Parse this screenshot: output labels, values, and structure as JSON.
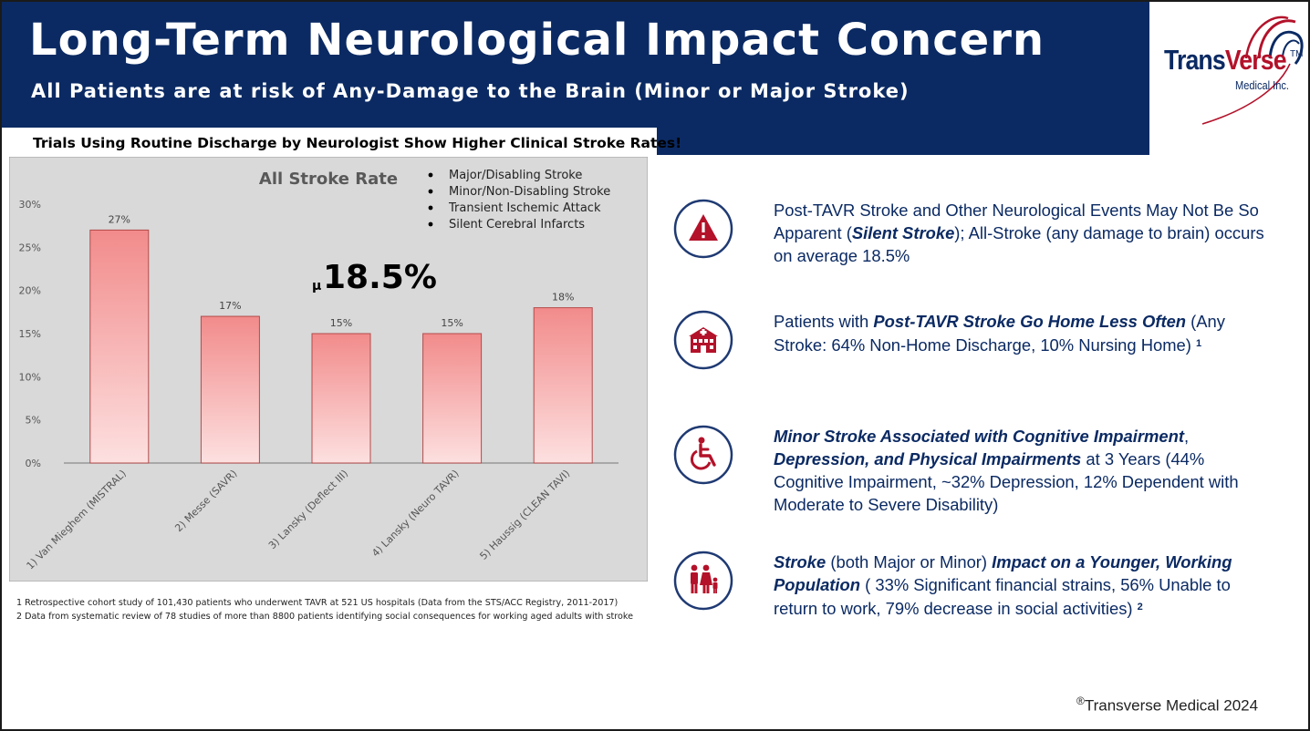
{
  "header": {
    "title": "Long-Term Neurological Impact Concern",
    "subtitle": "All Patients are at risk of Any-Damage to the Brain (Minor or Major Stroke)"
  },
  "logo": {
    "word_part1": "Trans",
    "word_part2": "Verse",
    "tm": "TM",
    "sub": "Medical Inc.",
    "colors": {
      "navy": "#0b2a63",
      "red": "#b3122a"
    }
  },
  "chart_heading": "Trials Using Routine Discharge by Neurologist Show Higher Clinical Stroke Rates!",
  "chart_data": {
    "type": "bar",
    "title": "All Stroke Rate",
    "categories": [
      "1) Van Mieghem (MISTRAL)",
      "2) Messe (SAVR)",
      "3) Lansky (Deflect III)",
      "4) Lansky (Neuro TAVR)",
      "5) Haussig (CLEAN TAVI)"
    ],
    "values": [
      27,
      17,
      15,
      15,
      18
    ],
    "data_labels": [
      "27%",
      "17%",
      "15%",
      "15%",
      "18%"
    ],
    "yticks": [
      "0%",
      "5%",
      "10%",
      "15%",
      "20%",
      "25%",
      "30%"
    ],
    "ylim": [
      0,
      30
    ],
    "grid": false,
    "legend_items": [
      "Major/Disabling Stroke",
      "Minor/Non-Disabling Stroke",
      "Transient Ischemic Attack",
      "Silent Cerebral Infarcts"
    ],
    "mean_symbol": "μ",
    "mean_value": "18.5%",
    "colors": {
      "bar_top": "#f28b8b",
      "bar_bottom": "#fde0e0",
      "bar_edge": "#b44a4a",
      "plot_bg": "#d9d9d9"
    }
  },
  "notes": [
    "1 Retrospective cohort study of 101,430 patients who underwent TAVR at 521 US hospitals (Data from the STS/ACC Registry, 2011-2017)",
    "2 Data from systematic review of 78 studies of more than 8800 patients identifying social consequences for working aged adults with stroke"
  ],
  "points": [
    {
      "icon": "warning-icon",
      "parts": [
        {
          "t": "Post-TAVR Stroke and Other Neurological Events May Not Be So Apparent ("
        },
        {
          "t": "Silent Stroke",
          "b": true
        },
        {
          "t": "); All-Stroke (any damage to brain) occurs on average 18.5%"
        }
      ]
    },
    {
      "icon": "hospital-icon",
      "parts": [
        {
          "t": "Patients with "
        },
        {
          "t": "Post-TAVR Stroke Go Home Less Often",
          "b": true
        },
        {
          "t": " (Any Stroke: 64% Non-Home Discharge, 10% Nursing Home) "
        },
        {
          "t": "1",
          "sup": true
        }
      ]
    },
    {
      "icon": "wheelchair-icon",
      "parts": [
        {
          "t": "Minor Stroke Associated with Cognitive Impairment",
          "b": true
        },
        {
          "t": ", "
        },
        {
          "t": "Depression, and Physical Impairments",
          "b": true
        },
        {
          "t": " at 3 Years (44% Cognitive Impairment, ~32% Depression, 12% Dependent with Moderate to Severe Disability)"
        }
      ]
    },
    {
      "icon": "family-icon",
      "parts": [
        {
          "t": "Stroke",
          "b": true
        },
        {
          "t": " (both Major or Minor) "
        },
        {
          "t": "Impact on a Younger, Working Population",
          "b": true
        },
        {
          "t": " ( 33% Significant financial strains, 56% Unable to return to work, 79% decrease in social activities) "
        },
        {
          "t": "2",
          "sup": true
        }
      ]
    }
  ],
  "copyright": {
    "symbol": "®",
    "text": "Transverse Medical 2024"
  },
  "icon_colors": {
    "circle_border": "#1f3a73",
    "glyph": "#b3122a"
  }
}
